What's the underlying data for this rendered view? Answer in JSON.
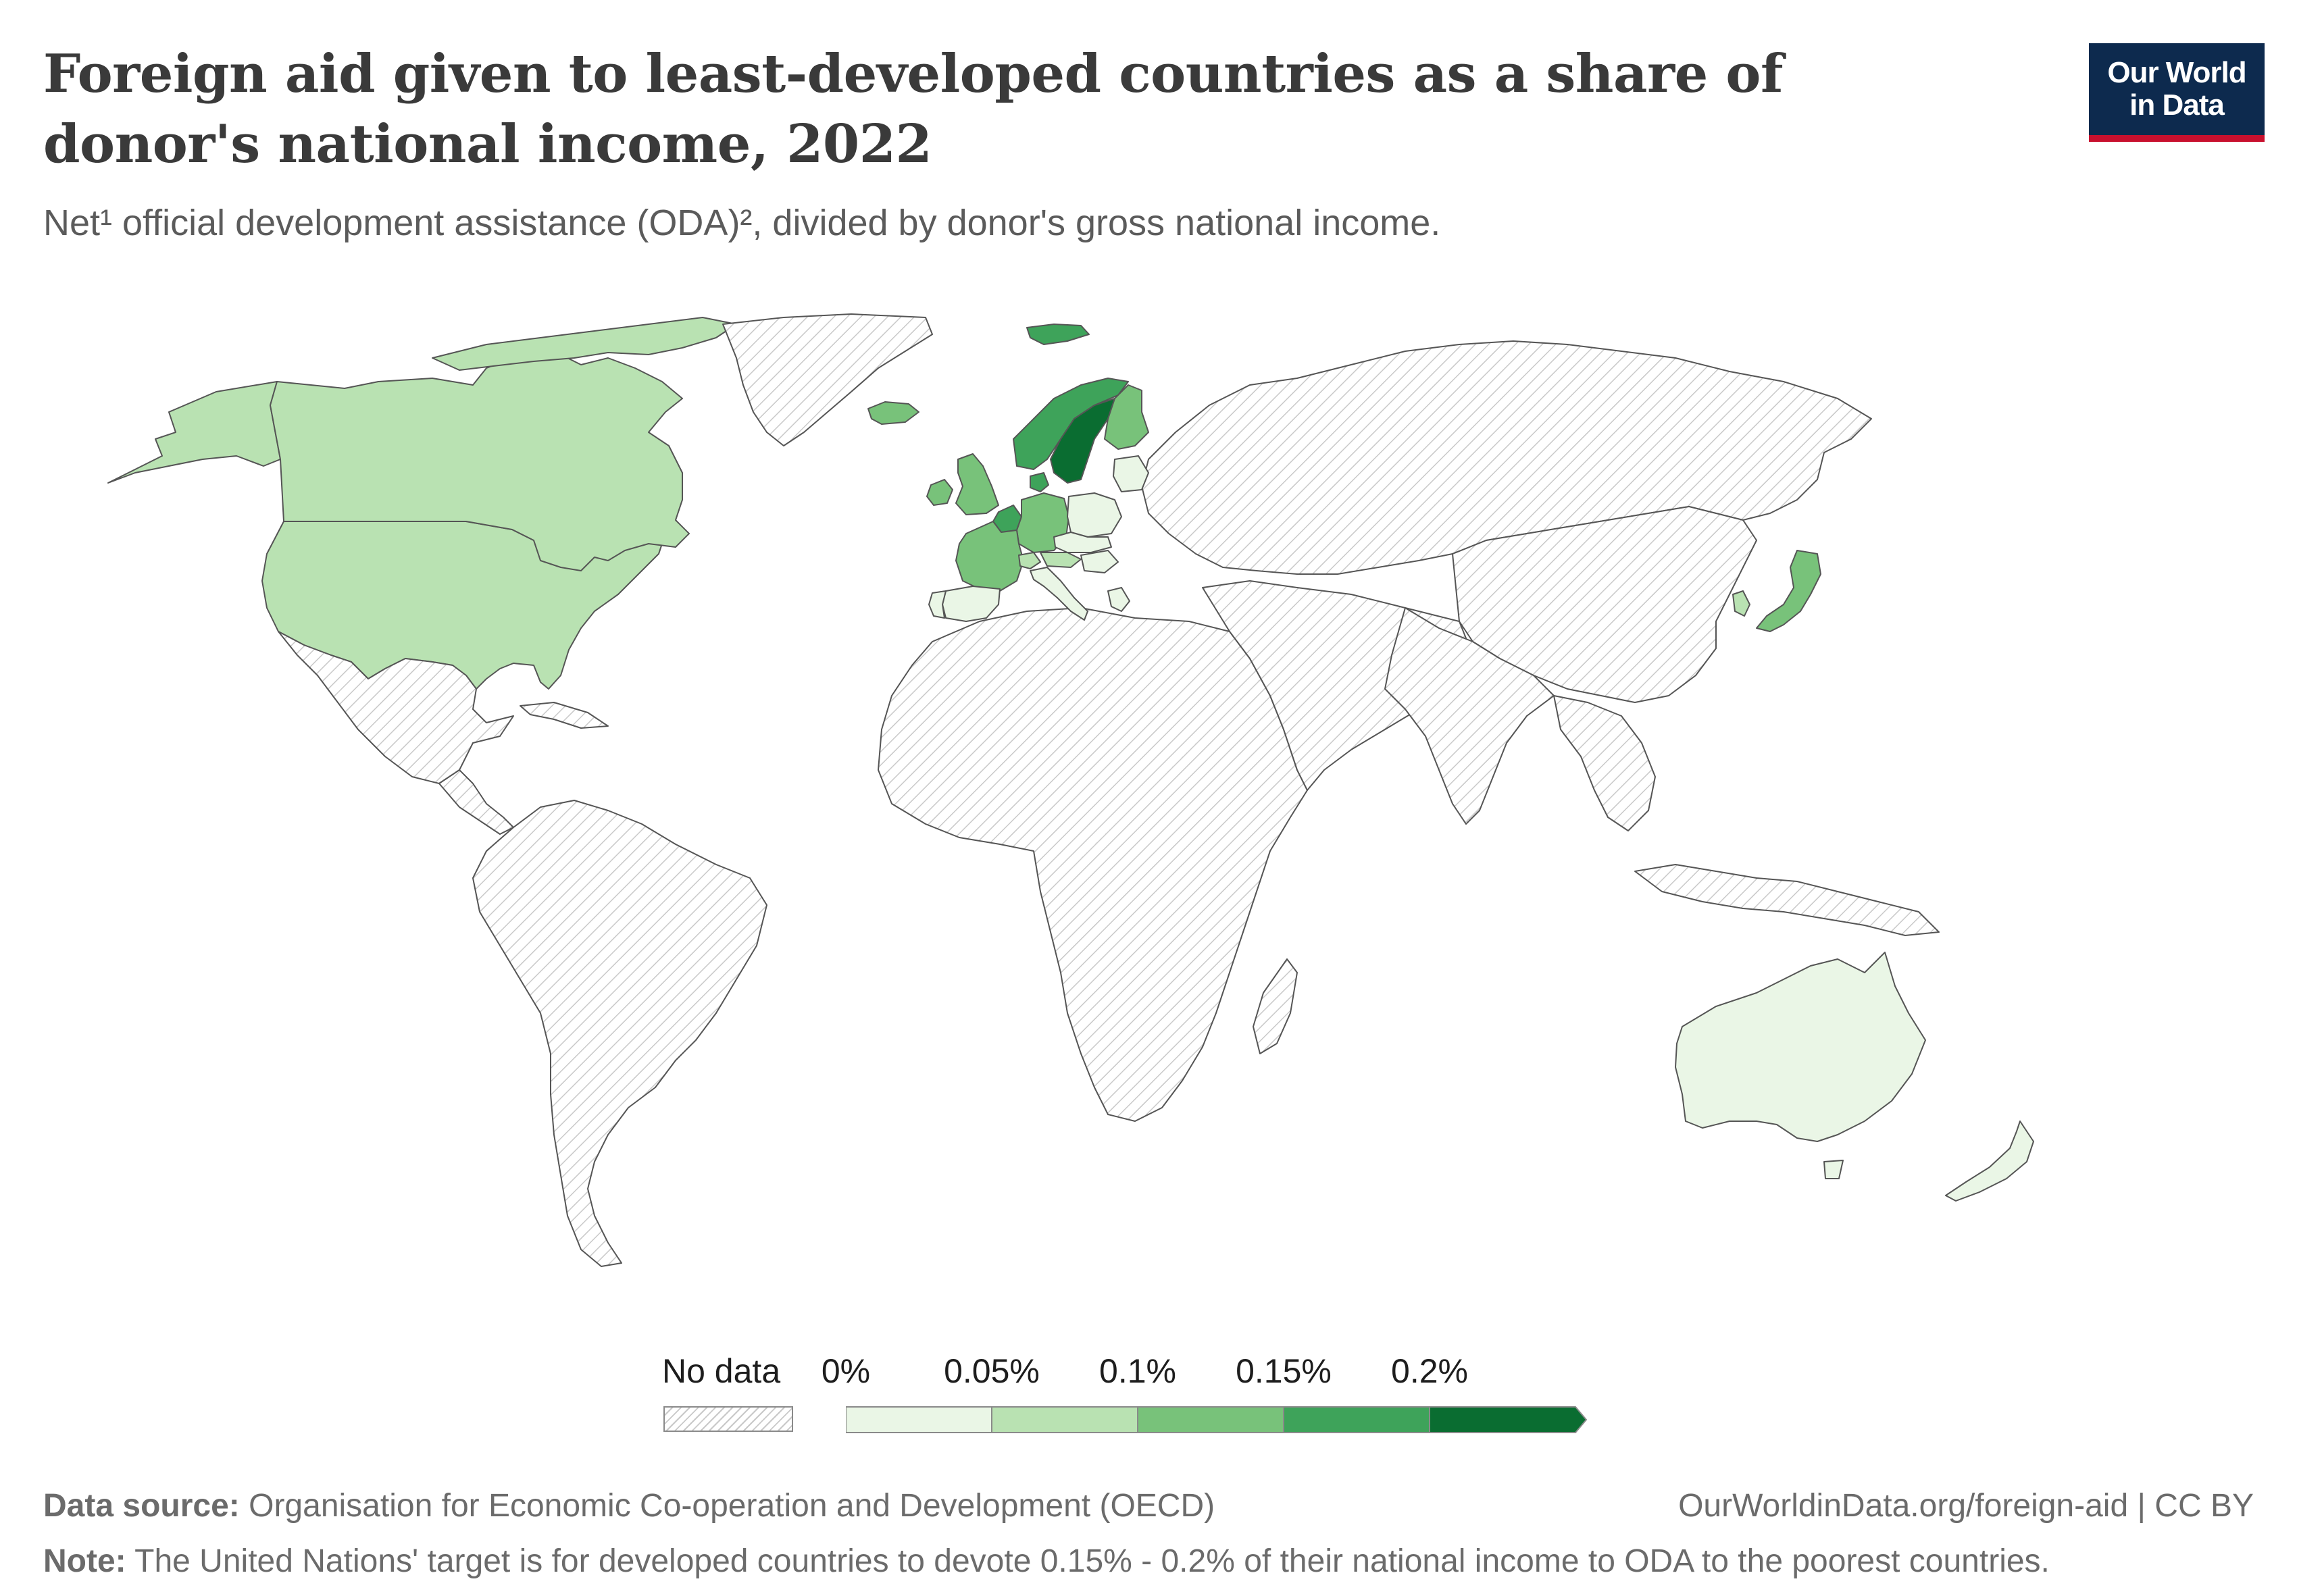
{
  "header": {
    "title": "Foreign aid given to least-developed countries as a share of donor's national income, 2022",
    "subtitle": "Net¹ official development assistance (ODA)², divided by donor's gross national income."
  },
  "logo": {
    "line1": "Our World",
    "line2": "in Data",
    "bg_color": "#0d2a4e",
    "accent_color": "#c8102e"
  },
  "map": {
    "colors": {
      "no_data_hatch": "#c9c9c9",
      "bin_0": "#eaf6e6",
      "bin_1": "#b9e2b2",
      "bin_2": "#78c27a",
      "bin_3": "#3ea35a",
      "bin_4": "#0a6d31"
    },
    "countries": [
      {
        "name": "United States",
        "bin": 1
      },
      {
        "name": "Canada",
        "bin": 1
      },
      {
        "name": "Greenland",
        "bin": null
      },
      {
        "name": "Mexico",
        "bin": null
      },
      {
        "name": "Central America & Caribbean",
        "bin": null
      },
      {
        "name": "South America",
        "bin": null
      },
      {
        "name": "Iceland",
        "bin": 2
      },
      {
        "name": "Svalbard",
        "bin": 3
      },
      {
        "name": "Ireland",
        "bin": 2
      },
      {
        "name": "United Kingdom",
        "bin": 2
      },
      {
        "name": "France",
        "bin": 2
      },
      {
        "name": "Spain",
        "bin": 0
      },
      {
        "name": "Portugal",
        "bin": 0
      },
      {
        "name": "Belgium & Netherlands",
        "bin": 3
      },
      {
        "name": "Germany",
        "bin": 2
      },
      {
        "name": "Switzerland",
        "bin": 1
      },
      {
        "name": "Austria",
        "bin": 1
      },
      {
        "name": "Italy",
        "bin": 0
      },
      {
        "name": "Denmark",
        "bin": 3
      },
      {
        "name": "Norway",
        "bin": 3
      },
      {
        "name": "Sweden",
        "bin": 4
      },
      {
        "name": "Finland",
        "bin": 2
      },
      {
        "name": "Baltic states",
        "bin": 0
      },
      {
        "name": "Poland",
        "bin": 0
      },
      {
        "name": "Czechia & Slovakia",
        "bin": 0
      },
      {
        "name": "Hungary & Slovenia",
        "bin": 0
      },
      {
        "name": "Greece",
        "bin": 0
      },
      {
        "name": "Russia & Central Asia",
        "bin": null
      },
      {
        "name": "Middle East",
        "bin": null
      },
      {
        "name": "Africa",
        "bin": null
      },
      {
        "name": "Madagascar",
        "bin": null
      },
      {
        "name": "India & South Asia",
        "bin": null
      },
      {
        "name": "China & Mongolia",
        "bin": null
      },
      {
        "name": "Southeast Asia",
        "bin": null
      },
      {
        "name": "South Korea",
        "bin": 1
      },
      {
        "name": "Japan",
        "bin": 2
      },
      {
        "name": "Australia",
        "bin": 0
      },
      {
        "name": "New Zealand",
        "bin": 0
      }
    ]
  },
  "legend": {
    "no_data_label": "No data",
    "ticks": [
      "0%",
      "0.05%",
      "0.1%",
      "0.15%",
      "0.2%"
    ],
    "bin_colors": [
      "#eaf6e6",
      "#b9e2b2",
      "#78c27a",
      "#3ea35a",
      "#0a6d31"
    ]
  },
  "footer": {
    "source_label": "Data source:",
    "source_text": "Organisation for Economic Co-operation and Development (OECD)",
    "url": "OurWorldinData.org/foreign-aid | CC BY",
    "note_label": "Note:",
    "note_text": "The United Nations' target is for developed countries to devote 0.15% - 0.2% of their national income to ODA to the poorest countries."
  }
}
